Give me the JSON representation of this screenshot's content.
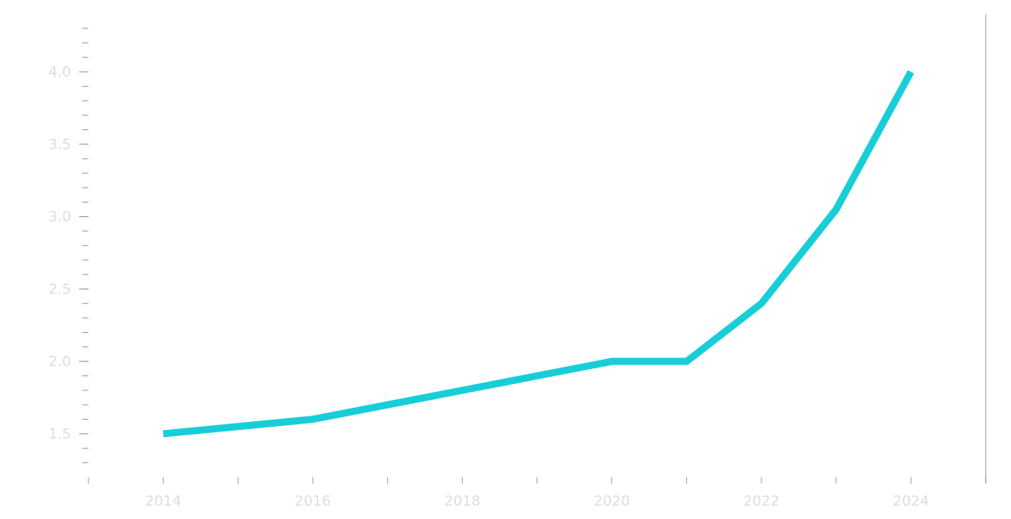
{
  "chart_data": {
    "type": "line",
    "x": [
      2014,
      2015,
      2016,
      2017,
      2018,
      2019,
      2020,
      2021,
      2022,
      2023,
      2024
    ],
    "series": [
      {
        "values": [
          1.5,
          1.55,
          1.6,
          1.7,
          1.8,
          1.9,
          2.0,
          2.0,
          2.4,
          3.05,
          4.0
        ]
      }
    ],
    "xlim": [
      2013,
      2025
    ],
    "ylim": [
      1.2,
      4.3
    ],
    "xticks": [
      "2014",
      "2016",
      "2018",
      "2020",
      "2022",
      "2024"
    ],
    "yticks": [
      "1.5",
      "2.0",
      "2.5",
      "3.0",
      "3.5",
      "4.0"
    ],
    "title": "",
    "xlabel": "",
    "ylabel": "",
    "grid": false,
    "colors": {
      "line": "#17ced8",
      "axis": "#999999",
      "tick_text": "#dddddd",
      "background": "#ffffff"
    }
  }
}
